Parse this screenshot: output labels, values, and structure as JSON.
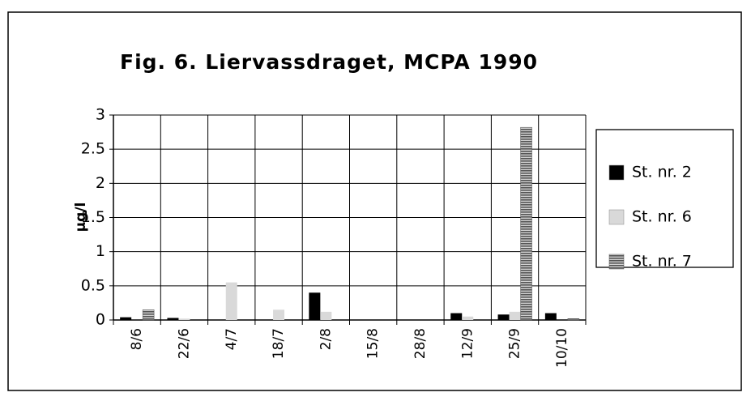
{
  "chart_data": {
    "type": "bar",
    "title": "Fig. 6. Liervassdraget, MCPA 1990",
    "y_label": "µg/l",
    "categories": [
      "8/6",
      "22/6",
      "4/7",
      "18/7",
      "2/8",
      "15/8",
      "28/8",
      "12/9",
      "25/9",
      "10/10"
    ],
    "series": [
      {
        "name": "St. nr. 2",
        "color": "#000000",
        "values": [
          0.04,
          0.03,
          0,
          0,
          0.4,
          0,
          0,
          0.1,
          0.08,
          0.1
        ]
      },
      {
        "name": "St. nr. 6",
        "color": "#d9d9d9",
        "values": [
          0,
          0.02,
          0.55,
          0.15,
          0.12,
          0,
          0,
          0.05,
          0.12,
          0
        ]
      },
      {
        "name": "St. nr. 7",
        "color": "#6e6e6e",
        "hatch": "horizontal",
        "values": [
          0.15,
          0,
          0,
          0,
          0,
          0,
          0,
          0,
          2.82,
          0.02
        ]
      }
    ],
    "ylim": [
      0,
      3
    ],
    "yticks": [
      0,
      0.5,
      1,
      1.5,
      2,
      2.5,
      3
    ],
    "grid": true,
    "legend": "right"
  }
}
